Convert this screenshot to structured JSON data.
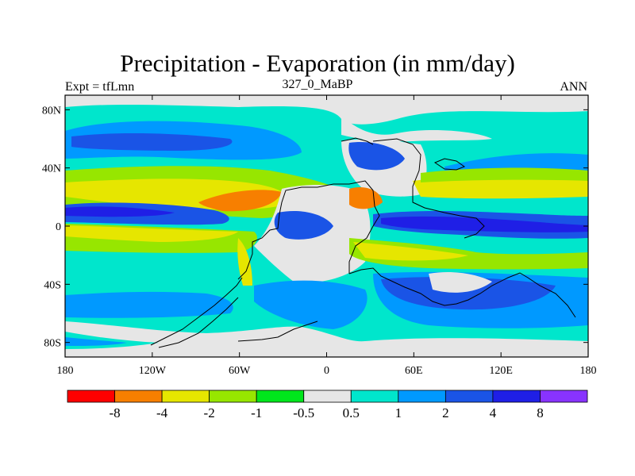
{
  "header": {
    "title": "Precipitation - Evaporation (in mm/day)",
    "left_label": "Expt = tfLmn",
    "center_label": "327_0_MaBP",
    "right_label": "ANN"
  },
  "chart_data": {
    "type": "heatmap",
    "title": "Precipitation - Evaporation (in mm/day)",
    "subtitle": "327_0_MaBP",
    "x_ticks": [
      "180",
      "120W",
      "60W",
      "0",
      "60E",
      "120E",
      "180"
    ],
    "y_ticks": [
      "80N",
      "40N",
      "0",
      "40S",
      "80S"
    ],
    "x_tick_values": [
      -180,
      -120,
      -60,
      0,
      60,
      120,
      180
    ],
    "y_tick_values": [
      80,
      40,
      0,
      -40,
      -80
    ],
    "xlim": [
      -180,
      180
    ],
    "ylim": [
      -90,
      90
    ],
    "colorbar": {
      "labels": [
        "-8",
        "-4",
        "-2",
        "-1",
        "-0.5",
        "0.5",
        "1",
        "2",
        "4",
        "8"
      ],
      "levels": [
        -8,
        -4,
        -2,
        -1,
        -0.5,
        0.5,
        1,
        2,
        4,
        8
      ],
      "colors": [
        "#ff0000",
        "#f77f00",
        "#e6e600",
        "#97e600",
        "#00e61c",
        "#e6e6e6",
        "#00e6cc",
        "#0099ff",
        "#1a54e6",
        "#1f1fe6",
        "#8833ff"
      ]
    }
  }
}
